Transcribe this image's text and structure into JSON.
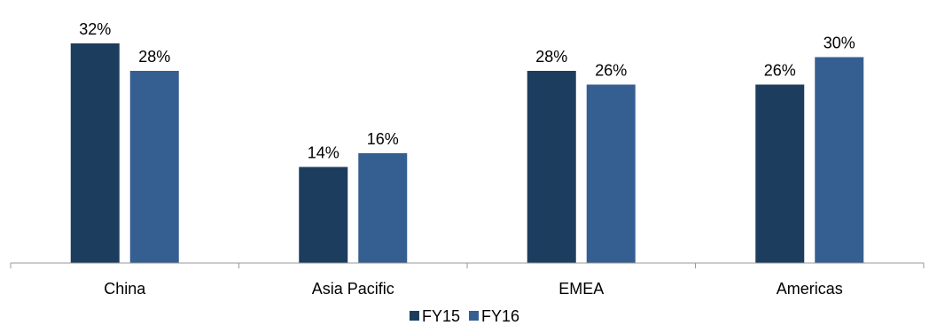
{
  "chart_data": {
    "type": "bar",
    "categories": [
      "China",
      "Asia Pacific",
      "EMEA",
      "Americas"
    ],
    "series": [
      {
        "name": "FY15",
        "color": "#1d3d5f",
        "values": [
          32,
          14,
          28,
          26
        ],
        "labels": [
          "32%",
          "14%",
          "28%",
          "26%"
        ]
      },
      {
        "name": "FY16",
        "color": "#365f91",
        "values": [
          28,
          16,
          26,
          30
        ],
        "labels": [
          "28%",
          "16%",
          "26%",
          "30%"
        ]
      }
    ],
    "title": "",
    "xlabel": "",
    "ylabel": "",
    "ylim": [
      0,
      32
    ],
    "value_format": "percent",
    "grid": false,
    "legend_position": "bottom-center"
  }
}
